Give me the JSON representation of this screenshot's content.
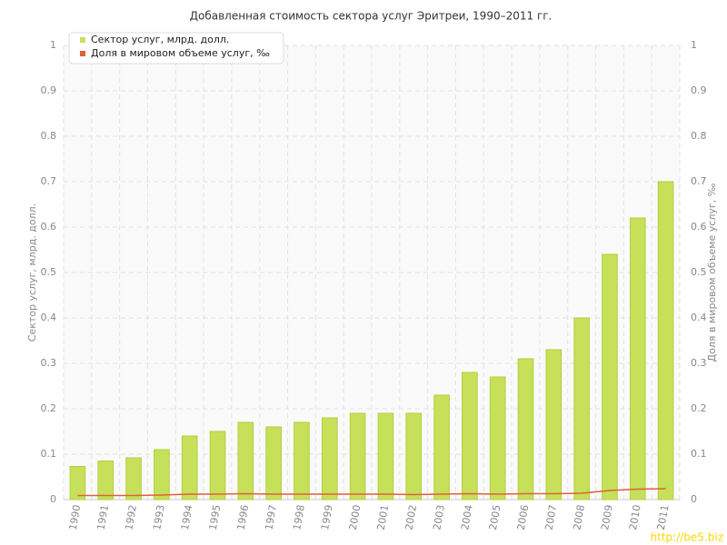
{
  "chart_data": {
    "type": "bar",
    "title": "Добавленная стоимость сектора услуг Эритреи, 1990–2011 гг.",
    "y_label": "Сектор услуг, млрд. долл.",
    "y2_label": "Доля в мировом объеме услуг, ‰",
    "categories": [
      "1990",
      "1991",
      "1992",
      "1993",
      "1994",
      "1995",
      "1996",
      "1997",
      "1998",
      "1999",
      "2000",
      "2001",
      "2002",
      "2003",
      "2004",
      "2005",
      "2006",
      "2007",
      "2008",
      "2009",
      "2010",
      "2011"
    ],
    "series": [
      {
        "name": "Сектор услуг, млрд. долл.",
        "type": "bar",
        "color": "#c6e05a",
        "values": [
          0.073,
          0.085,
          0.092,
          0.11,
          0.14,
          0.15,
          0.17,
          0.16,
          0.17,
          0.18,
          0.19,
          0.19,
          0.19,
          0.23,
          0.28,
          0.27,
          0.31,
          0.33,
          0.4,
          0.54,
          0.62,
          0.7
        ]
      },
      {
        "name": "Доля в мировом объеме услуг, ‰",
        "type": "line",
        "color": "#e0603a",
        "axis": "y2",
        "values": [
          0.009,
          0.009,
          0.009,
          0.01,
          0.012,
          0.012,
          0.013,
          0.012,
          0.012,
          0.012,
          0.012,
          0.012,
          0.011,
          0.012,
          0.013,
          0.012,
          0.013,
          0.013,
          0.014,
          0.02,
          0.023,
          0.024
        ]
      }
    ],
    "ylim": [
      0,
      1
    ],
    "yticks": [
      0,
      0.1,
      0.2,
      0.3,
      0.4,
      0.5,
      0.6,
      0.7,
      0.8,
      0.9,
      1
    ],
    "y2lim": [
      0,
      1
    ],
    "y2ticks": [
      0,
      0.1,
      0.2,
      0.3,
      0.4,
      0.5,
      0.6,
      0.7,
      0.8,
      0.9,
      1
    ],
    "grid": true,
    "legend": "top-left",
    "watermark": "http://be5.biz"
  }
}
